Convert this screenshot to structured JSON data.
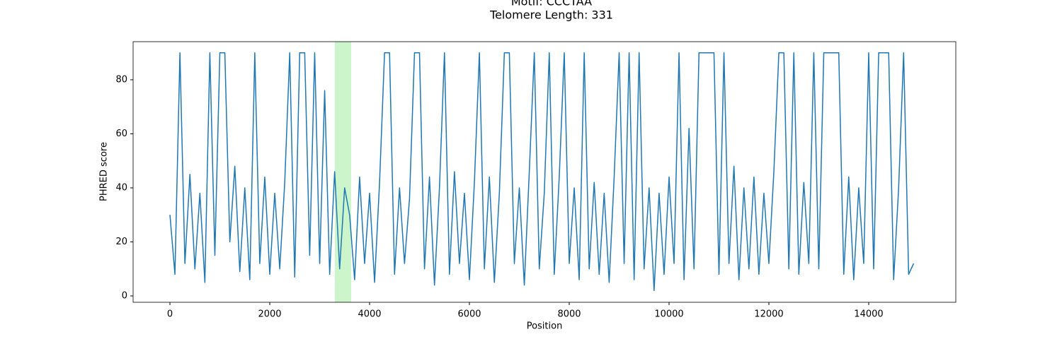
{
  "chart_data": {
    "type": "line",
    "title": [
      "Motif: CCCTAA",
      "Telomere Length: 331"
    ],
    "xlabel": "Position",
    "ylabel": "PHRED score",
    "x": [
      0,
      100,
      200,
      300,
      400,
      500,
      600,
      700,
      800,
      900,
      1000,
      1100,
      1200,
      1300,
      1400,
      1500,
      1600,
      1700,
      1800,
      1900,
      2000,
      2100,
      2200,
      2300,
      2400,
      2500,
      2600,
      2700,
      2800,
      2900,
      3000,
      3100,
      3200,
      3300,
      3400,
      3500,
      3600,
      3700,
      3800,
      3900,
      4000,
      4100,
      4200,
      4300,
      4400,
      4500,
      4600,
      4700,
      4800,
      4900,
      5000,
      5100,
      5200,
      5300,
      5400,
      5500,
      5600,
      5700,
      5800,
      5900,
      6000,
      6100,
      6200,
      6300,
      6400,
      6500,
      6600,
      6700,
      6800,
      6900,
      7000,
      7100,
      7200,
      7300,
      7400,
      7500,
      7600,
      7700,
      7800,
      7900,
      8000,
      8100,
      8200,
      8300,
      8400,
      8500,
      8600,
      8700,
      8800,
      8900,
      9000,
      9100,
      9200,
      9300,
      9400,
      9500,
      9600,
      9700,
      9800,
      9900,
      10000,
      10100,
      10200,
      10300,
      10400,
      10500,
      10600,
      10700,
      10800,
      10900,
      11000,
      11100,
      11200,
      11300,
      11400,
      11500,
      11600,
      11700,
      11800,
      11900,
      12000,
      12100,
      12200,
      12300,
      12400,
      12500,
      12600,
      12700,
      12800,
      12900,
      13000,
      13100,
      13200,
      13300,
      13400,
      13500,
      13600,
      13700,
      13800,
      13900,
      14000,
      14100,
      14200,
      14300,
      14400,
      14500,
      14600,
      14700,
      14800,
      14900
    ],
    "series": [
      {
        "name": "PHRED score",
        "color": "#1f77b4",
        "values": [
          30,
          8,
          90,
          12,
          45,
          10,
          38,
          5,
          90,
          15,
          90,
          90,
          20,
          48,
          9,
          40,
          6,
          90,
          12,
          44,
          8,
          38,
          10,
          42,
          90,
          7,
          90,
          90,
          15,
          90,
          12,
          76,
          8,
          46,
          10,
          40,
          30,
          6,
          44,
          12,
          38,
          5,
          42,
          90,
          90,
          8,
          40,
          12,
          36,
          90,
          90,
          10,
          44,
          4,
          40,
          90,
          8,
          46,
          12,
          38,
          6,
          42,
          90,
          10,
          44,
          5,
          38,
          90,
          90,
          12,
          40,
          4,
          46,
          90,
          10,
          38,
          90,
          8,
          44,
          90,
          12,
          40,
          6,
          90,
          10,
          42,
          8,
          38,
          5,
          44,
          90,
          12,
          90,
          6,
          90,
          10,
          40,
          2,
          38,
          8,
          44,
          12,
          90,
          6,
          62,
          10,
          90,
          90,
          90,
          90,
          8,
          90,
          12,
          48,
          6,
          40,
          10,
          44,
          8,
          38,
          12,
          46,
          90,
          90,
          10,
          90,
          8,
          42,
          12,
          90,
          10,
          90,
          90,
          90,
          90,
          8,
          44,
          6,
          40,
          12,
          90,
          10,
          90,
          90,
          90,
          6,
          40,
          90,
          8,
          12
        ]
      }
    ],
    "highlight": {
      "xrange": [
        3305,
        3631
      ],
      "color": "#ccf5cc"
    },
    "xlim": [
      -738,
      15745
    ],
    "ylim": [
      -2.35,
      94.1
    ],
    "xticks": [
      0,
      2000,
      4000,
      6000,
      8000,
      10000,
      12000,
      14000
    ],
    "yticks": [
      0,
      20,
      40,
      60,
      80
    ]
  }
}
